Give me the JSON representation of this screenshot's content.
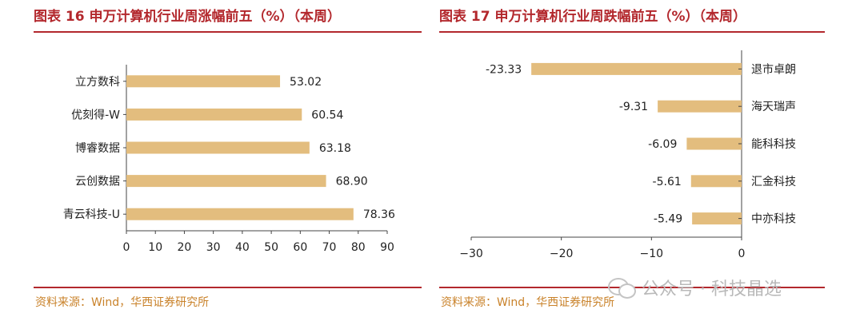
{
  "left": {
    "title": "图表 16 申万计算机行业周涨幅前五（%）（本周）",
    "source": "资料来源：Wind，华西证券研究所"
  },
  "right": {
    "title": "图表 17 申万计算机行业周跌幅前五（%）（本周）",
    "source": "资料来源：Wind，华西证券研究所"
  },
  "watermark": {
    "icon": "wechat-icon",
    "text": "公众号 · 科技晶选"
  },
  "colors": {
    "bar": "#e3bd7e",
    "accent": "#b3282d",
    "axis": "#444444",
    "source": "#c9822a"
  },
  "chart_data": [
    {
      "type": "bar",
      "orientation": "horizontal",
      "categories": [
        "立方数科",
        "优刻得-W",
        "博睿数据",
        "云创数据",
        "青云科技-U"
      ],
      "values": [
        53.02,
        60.54,
        63.18,
        68.9,
        78.36
      ],
      "value_labels": [
        "53.02",
        "60.54",
        "63.18",
        "68.90",
        "78.36"
      ],
      "xlim": [
        0,
        90
      ],
      "xticks": [
        0,
        10,
        20,
        30,
        40,
        50,
        60,
        70,
        80,
        90
      ],
      "grid": false,
      "legend": "none"
    },
    {
      "type": "bar",
      "orientation": "horizontal",
      "categories": [
        "退市卓朗",
        "海天瑞声",
        "能科科技",
        "汇金科技",
        "中亦科技"
      ],
      "values": [
        -23.33,
        -9.31,
        -6.09,
        -5.61,
        -5.49
      ],
      "value_labels": [
        "-23.33",
        "-9.31",
        "-6.09",
        "-5.61",
        "-5.49"
      ],
      "xlim": [
        -30,
        0
      ],
      "xticks": [
        -30,
        -20,
        -10,
        0
      ],
      "grid": false,
      "legend": "none"
    }
  ]
}
